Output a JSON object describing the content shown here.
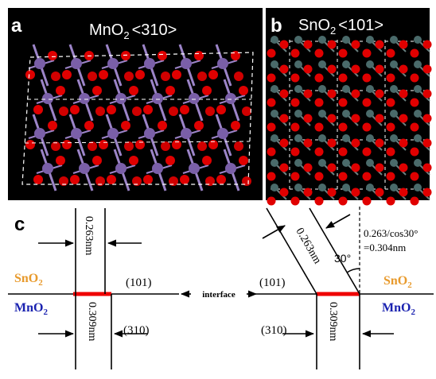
{
  "panels": {
    "a": {
      "label": "a",
      "formula": [
        "MnO",
        "2"
      ],
      "direction": "<310>"
    },
    "b": {
      "label": "b",
      "formula": [
        "SnO",
        "2"
      ],
      "direction": "<101>"
    },
    "c": {
      "label": "c",
      "interface": "interface",
      "left": {
        "top_spacing": "0.263nm",
        "bottom_spacing": "0.309nm",
        "top_phase": [
          "SnO",
          "2"
        ],
        "bottom_phase": [
          "MnO",
          "2"
        ],
        "top_plane": "(101)",
        "bottom_plane": "(310)"
      },
      "right": {
        "top_spacing": "0.263nm",
        "bottom_spacing": "0.309nm",
        "angle": "30°",
        "projection": [
          "0.263/cos30°",
          "=0.304nm"
        ],
        "top_phase": [
          "SnO",
          "2"
        ],
        "bottom_phase": [
          "MnO",
          "2"
        ],
        "top_plane": "(101)",
        "bottom_plane": "(310)"
      }
    }
  }
}
